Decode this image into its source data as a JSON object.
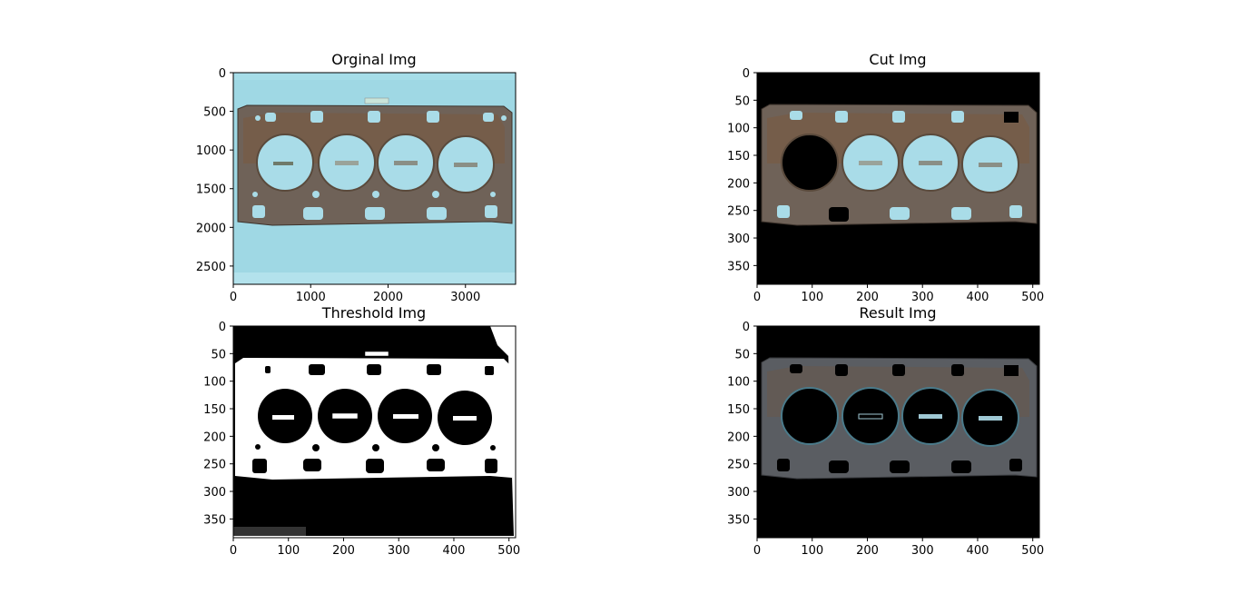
{
  "chart_data": [
    {
      "type": "image",
      "title": "Orginal Img",
      "xticks": [
        "0",
        "1000",
        "2000",
        "3000"
      ],
      "xtick_values": [
        0,
        1000,
        2000,
        3000
      ],
      "yticks": [
        "0",
        "500",
        "1000",
        "1500",
        "2000",
        "2500"
      ],
      "ytick_values": [
        0,
        500,
        1000,
        1500,
        2000,
        2500
      ],
      "xlim": [
        0,
        3648
      ],
      "ylim": [
        2736,
        0
      ],
      "background": "#9fd8e4",
      "gasket_on_background": true
    },
    {
      "type": "image",
      "title": "Cut Img",
      "xticks": [
        "0",
        "100",
        "200",
        "300",
        "400",
        "500"
      ],
      "xtick_values": [
        0,
        100,
        200,
        300,
        400,
        500
      ],
      "yticks": [
        "0",
        "50",
        "100",
        "150",
        "200",
        "250",
        "300",
        "350"
      ],
      "ytick_values": [
        0,
        50,
        100,
        150,
        200,
        250,
        300,
        350
      ],
      "xlim": [
        0,
        512
      ],
      "ylim": [
        384,
        0
      ],
      "background": "#000000"
    },
    {
      "type": "image",
      "title": "Threshold Img",
      "xticks": [
        "0",
        "100",
        "200",
        "300",
        "400",
        "500"
      ],
      "xtick_values": [
        0,
        100,
        200,
        300,
        400,
        500
      ],
      "yticks": [
        "0",
        "50",
        "100",
        "150",
        "200",
        "250",
        "300",
        "350"
      ],
      "ytick_values": [
        0,
        50,
        100,
        150,
        200,
        250,
        300,
        350
      ],
      "xlim": [
        0,
        512
      ],
      "ylim": [
        384,
        0
      ],
      "background": "#000000",
      "binary": true
    },
    {
      "type": "image",
      "title": "Result Img",
      "xticks": [
        "0",
        "100",
        "200",
        "300",
        "400",
        "500"
      ],
      "xtick_values": [
        0,
        100,
        200,
        300,
        400,
        500
      ],
      "yticks": [
        "0",
        "50",
        "100",
        "150",
        "200",
        "250",
        "300",
        "350"
      ],
      "ytick_values": [
        0,
        50,
        100,
        150,
        200,
        250,
        300,
        350
      ],
      "xlim": [
        0,
        512
      ],
      "ylim": [
        384,
        0
      ],
      "background": "#000000"
    }
  ],
  "colors": {
    "gasket_metal": "#6f6258",
    "gasket_rust": "#7a5a40",
    "bore_light": "#a9dce8",
    "threshold_white": "#ffffff",
    "threshold_black": "#000000",
    "result_metal": "#5a5d62"
  }
}
